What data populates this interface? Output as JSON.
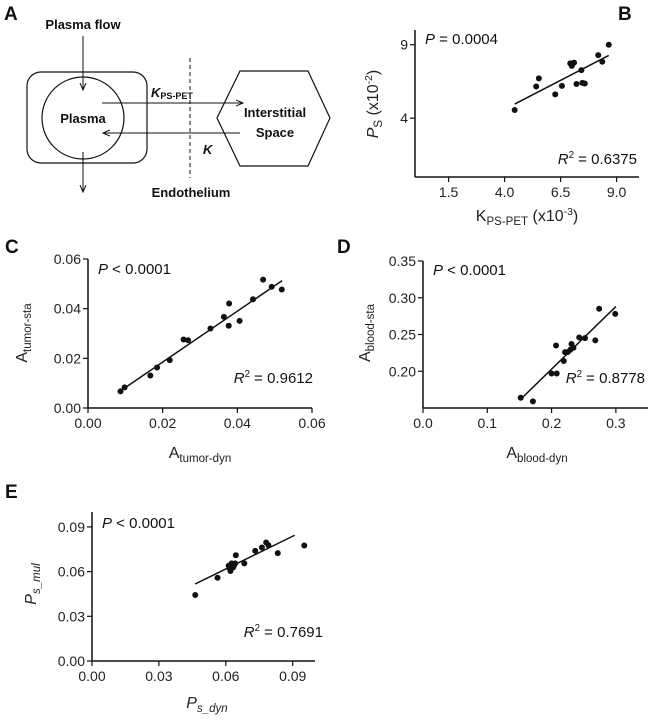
{
  "diagram": {
    "panel": "A",
    "plasma_flow": "Plasma flow",
    "plasma": "Plasma",
    "kps_main": "K",
    "kps_sub": "PS-PET",
    "k": "K",
    "interstitial_line1": "Interstitial",
    "interstitial_line2": "Space",
    "endothelium": "Endothelium"
  },
  "chart_data": [
    {
      "panel": "B",
      "type": "scatter",
      "xlim": [
        0,
        10
      ],
      "ylim": [
        0,
        10
      ],
      "xticks": [
        1.5,
        4.0,
        6.5,
        9.0
      ],
      "xtick_labels": [
        "1.5",
        "4.0",
        "6.5",
        "9.0"
      ],
      "yticks": [
        4,
        9
      ],
      "ytick_labels": [
        "4",
        "9"
      ],
      "xlabel": [
        {
          "t": "K",
          "s": "",
          "i": false
        },
        {
          "t": "PS-PET",
          "s": "sub",
          "i": false
        },
        {
          "t": " (x10",
          "s": "",
          "i": false
        },
        {
          "t": "-3",
          "s": "sup",
          "i": false
        },
        {
          "t": ")",
          "s": "",
          "i": false
        }
      ],
      "ylabel": [
        {
          "t": "P",
          "s": "",
          "i": true
        },
        {
          "t": "S",
          "s": "sub",
          "i": false
        },
        {
          "t": " (x10",
          "s": "",
          "i": false
        },
        {
          "t": "-2",
          "s": "sup",
          "i": false
        },
        {
          "t": ")",
          "s": "",
          "i": false
        }
      ],
      "p_text": [
        {
          "t": "P",
          "s": "",
          "i": true
        },
        {
          "t": " = 0.0004",
          "s": "",
          "i": false
        }
      ],
      "r2_text": [
        {
          "t": "R",
          "s": "",
          "i": true
        },
        {
          "t": "2",
          "s": "sup",
          "i": false
        },
        {
          "t": " = 0.6375",
          "s": "",
          "i": false
        }
      ],
      "x": [
        4.45,
        5.41,
        5.53,
        6.56,
        6.26,
        6.93,
        7.03,
        7.1,
        7.0,
        7.21,
        7.43,
        7.47,
        7.58,
        8.18,
        8.36,
        8.65
      ],
      "y": [
        4.56,
        6.16,
        6.71,
        6.2,
        5.62,
        7.73,
        7.71,
        7.78,
        7.56,
        6.33,
        7.27,
        6.4,
        6.36,
        8.29,
        7.84,
        9.0
      ],
      "fit": {
        "x": [
          4.45,
          8.65
        ],
        "y": [
          4.96,
          8.27
        ]
      }
    },
    {
      "panel": "C",
      "type": "scatter",
      "xlim": [
        0,
        0.06
      ],
      "ylim": [
        0,
        0.06
      ],
      "xticks": [
        0,
        0.02,
        0.04,
        0.06
      ],
      "xtick_labels": [
        "0.00",
        "0.02",
        "0.04",
        "0.06"
      ],
      "yticks": [
        0,
        0.02,
        0.04,
        0.06
      ],
      "ytick_labels": [
        "0.00",
        "0.02",
        "0.04",
        "0.06"
      ],
      "xlabel": [
        {
          "t": "A",
          "s": "",
          "i": false
        },
        {
          "t": "tumor-dyn",
          "s": "sub",
          "i": false
        }
      ],
      "ylabel": [
        {
          "t": "A",
          "s": "",
          "i": false
        },
        {
          "t": "tumor-sta",
          "s": "sub",
          "i": false
        }
      ],
      "p_text": [
        {
          "t": "P",
          "s": "",
          "i": true
        },
        {
          "t": " < 0.0001",
          "s": "",
          "i": false
        }
      ],
      "r2_text": [
        {
          "t": "R",
          "s": "",
          "i": true
        },
        {
          "t": "2",
          "s": "sup",
          "i": false
        },
        {
          "t": " = 0.9612",
          "s": "",
          "i": false
        }
      ],
      "x": [
        0.0087,
        0.0098,
        0.0167,
        0.0185,
        0.0219,
        0.0256,
        0.0268,
        0.0328,
        0.0364,
        0.0377,
        0.0378,
        0.0406,
        0.0442,
        0.0469,
        0.0492,
        0.0519
      ],
      "y": [
        0.0067,
        0.0083,
        0.0131,
        0.0163,
        0.0193,
        0.0276,
        0.0273,
        0.032,
        0.0367,
        0.0331,
        0.0421,
        0.0351,
        0.0438,
        0.0517,
        0.0488,
        0.0477
      ],
      "fit": {
        "x": [
          0.0085,
          0.052
        ],
        "y": [
          0.0067,
          0.0513
        ]
      }
    },
    {
      "panel": "D",
      "type": "scatter",
      "xlim": [
        0,
        0.35
      ],
      "ylim": [
        0.15,
        0.35
      ],
      "xticks": [
        0,
        0.1,
        0.2,
        0.3
      ],
      "xtick_labels": [
        "0.0",
        "0.1",
        "0.2",
        "0.3"
      ],
      "yticks": [
        0.2,
        0.25,
        0.3,
        0.35
      ],
      "ytick_labels": [
        "0.20",
        "0.25",
        "0.30",
        "0.35"
      ],
      "xlabel": [
        {
          "t": "A",
          "s": "",
          "i": false
        },
        {
          "t": "blood-dyn",
          "s": "sub",
          "i": false
        }
      ],
      "ylabel": [
        {
          "t": "A",
          "s": "",
          "i": false
        },
        {
          "t": "blood-sta",
          "s": "sub",
          "i": false
        }
      ],
      "p_text": [
        {
          "t": "P",
          "s": "",
          "i": true
        },
        {
          "t": " < 0.0001",
          "s": "",
          "i": false
        }
      ],
      "r2_text": [
        {
          "t": "R",
          "s": "",
          "i": true
        },
        {
          "t": "2",
          "s": "sup",
          "i": false
        },
        {
          "t": " = 0.8778",
          "s": "",
          "i": false
        }
      ],
      "x": [
        0.152,
        0.171,
        0.2,
        0.208,
        0.207,
        0.219,
        0.221,
        0.225,
        0.229,
        0.231,
        0.234,
        0.243,
        0.252,
        0.268,
        0.274,
        0.299
      ],
      "y": [
        0.164,
        0.159,
        0.197,
        0.197,
        0.235,
        0.214,
        0.226,
        0.226,
        0.229,
        0.237,
        0.232,
        0.246,
        0.245,
        0.242,
        0.285,
        0.278
      ],
      "fit": {
        "x": [
          0.152,
          0.3
        ],
        "y": [
          0.162,
          0.288
        ]
      }
    },
    {
      "panel": "E",
      "type": "scatter",
      "xlim": [
        0,
        0.1
      ],
      "ylim": [
        0,
        0.1
      ],
      "xticks": [
        0,
        0.03,
        0.06,
        0.09
      ],
      "xtick_labels": [
        "0.00",
        "0.03",
        "0.06",
        "0.09"
      ],
      "yticks": [
        0,
        0.03,
        0.06,
        0.09
      ],
      "ytick_labels": [
        "0.00",
        "0.03",
        "0.06",
        "0.09"
      ],
      "xlabel": [
        {
          "t": "P",
          "s": "",
          "i": true
        },
        {
          "t": "s_dyn",
          "s": "sub",
          "i": true
        }
      ],
      "ylabel": [
        {
          "t": "P",
          "s": "",
          "i": true
        },
        {
          "t": "s_mul",
          "s": "sub",
          "i": true
        }
      ],
      "p_text": [
        {
          "t": "P",
          "s": "",
          "i": true
        },
        {
          "t": " < 0.0001",
          "s": "",
          "i": false
        }
      ],
      "r2_text": [
        {
          "t": "R",
          "s": "",
          "i": true
        },
        {
          "t": "2",
          "s": "sup",
          "i": false
        },
        {
          "t": " = 0.7691",
          "s": "",
          "i": false
        }
      ],
      "x": [
        0.0463,
        0.0563,
        0.0613,
        0.0618,
        0.0621,
        0.0626,
        0.0633,
        0.0638,
        0.0645,
        0.0642,
        0.0683,
        0.0732,
        0.0762,
        0.0781,
        0.0791,
        0.0833,
        0.0952
      ],
      "y": [
        0.0443,
        0.0559,
        0.0639,
        0.0621,
        0.0604,
        0.0655,
        0.0628,
        0.0644,
        0.071,
        0.0655,
        0.0655,
        0.0739,
        0.0762,
        0.0795,
        0.0777,
        0.0724,
        0.0775
      ],
      "fit": {
        "x": [
          0.0463,
          0.0909
        ],
        "y": [
          0.0517,
          0.0844
        ]
      }
    }
  ]
}
